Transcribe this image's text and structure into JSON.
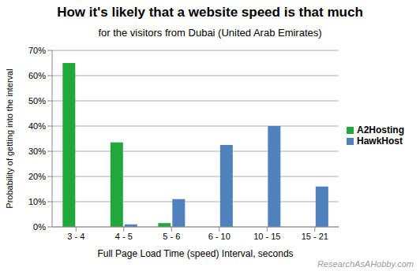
{
  "chart_data": {
    "type": "bar",
    "title": "How it's likely that a website speed is that much",
    "subtitle": "for the visitors from Dubai (United Arab Emirates)",
    "x_label": "Full Page Load Time (speed) Interval, seconds",
    "y_label": "Probability of getting into the interval",
    "annotation": "ResearchAsAHobby.com",
    "categories": [
      "3 - 4",
      "4 - 5",
      "5 - 6",
      "6 - 10",
      "10 - 15",
      "15 - 21"
    ],
    "series": [
      {
        "name": "A2Hosting",
        "color": "#22a83a",
        "values": [
          65,
          33.5,
          1.5,
          0,
          0,
          0
        ]
      },
      {
        "name": "HawkHost",
        "color": "#4f81bd",
        "values": [
          0,
          1,
          11,
          32.5,
          40,
          16
        ]
      }
    ],
    "ylim": [
      0,
      70
    ],
    "yticks": [
      {
        "value": 0,
        "label": "0%"
      },
      {
        "value": 10,
        "label": "10%"
      },
      {
        "value": 20,
        "label": "20%"
      },
      {
        "value": 30,
        "label": "30%"
      },
      {
        "value": 40,
        "label": "40%"
      },
      {
        "value": 50,
        "label": "50%"
      },
      {
        "value": 60,
        "label": "60%"
      },
      {
        "value": 70,
        "label": "70%"
      }
    ],
    "grid": true,
    "legend": "right"
  }
}
